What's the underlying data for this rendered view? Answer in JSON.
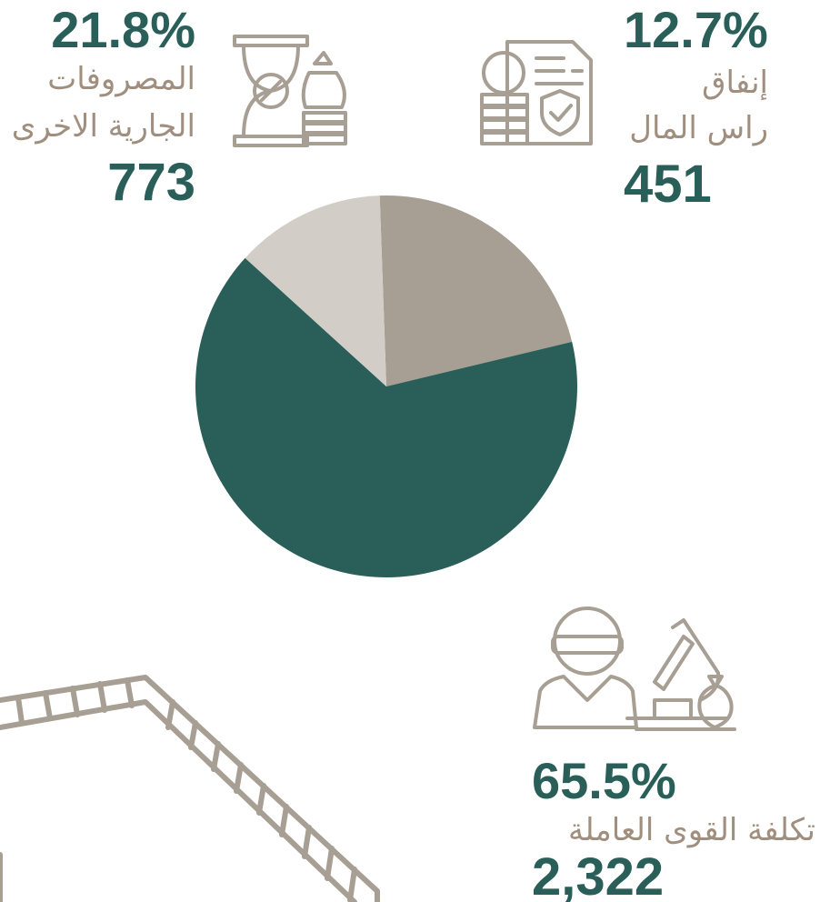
{
  "chart_data": {
    "type": "pie",
    "categories": [
      [
        "المصروفات",
        "الجارية الاخرى"
      ],
      [
        "تكلفة القوى العاملة"
      ],
      [
        "إنفاق",
        "راس المال"
      ]
    ],
    "values": [
      21.8,
      65.5,
      12.7
    ],
    "value_labels": [
      "21.8%",
      "65.5%",
      "12.7%"
    ],
    "amounts": [
      773,
      2322,
      451
    ],
    "amount_labels": [
      "773",
      "2,322",
      "451"
    ],
    "colors": [
      "#a89f94",
      "#2a5f59",
      "#d3cdc7"
    ]
  }
}
